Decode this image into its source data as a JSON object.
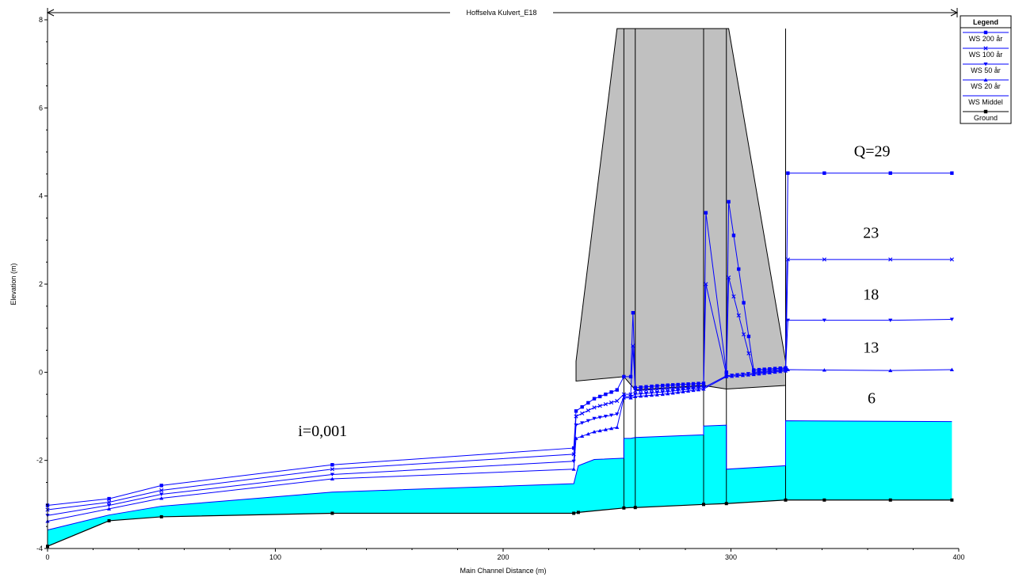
{
  "chart_data": {
    "type": "line",
    "title": "",
    "reach_label": "Hoffselva Kulvert_E18",
    "xlabel": "Main Channel Distance (m)",
    "ylabel": "Elevation (m)",
    "xlim": [
      0,
      400
    ],
    "ylim": [
      -4,
      8
    ],
    "x_ticks": [
      0,
      100,
      200,
      300,
      400
    ],
    "y_ticks": [
      -4,
      -2,
      0,
      2,
      4,
      6,
      8
    ],
    "legend": {
      "title": "Legend",
      "position": "top-right",
      "entries": [
        "WS  200 år",
        "WS  100 år",
        "WS  50 år",
        "WS  20 år",
        "WS  Middel",
        "Ground"
      ]
    },
    "colors": {
      "ws": "#0000ff",
      "water": "#00ffff",
      "ground": "#000000",
      "culvert_fill": "#c0c0c0"
    },
    "annotations": [
      {
        "text": "Q=29",
        "x": 354,
        "y": 4.9
      },
      {
        "text": "23",
        "x": 358,
        "y": 3.05
      },
      {
        "text": "18",
        "x": 358,
        "y": 1.65
      },
      {
        "text": "13",
        "x": 358,
        "y": 0.45
      },
      {
        "text": "6",
        "x": 360,
        "y": -0.7
      },
      {
        "text": "i=0,001",
        "x": 110,
        "y": -1.45
      }
    ],
    "ground": {
      "x": [
        0,
        27,
        50,
        125,
        231,
        233,
        253,
        256,
        258,
        288,
        298,
        324,
        341,
        370,
        397
      ],
      "y": [
        -3.95,
        -3.37,
        -3.28,
        -3.2,
        -3.2,
        -3.18,
        -3.08,
        -3.07,
        -3.07,
        -3.0,
        -2.98,
        -2.9,
        -2.9,
        -2.9,
        -2.9
      ]
    },
    "culvert": {
      "polygon": [
        [
          232,
          0.25
        ],
        [
          250,
          7.8
        ],
        [
          299,
          7.8
        ],
        [
          324,
          0.25
        ],
        [
          324,
          -0.3
        ],
        [
          298,
          -0.38
        ],
        [
          288,
          -0.3
        ],
        [
          258,
          -0.4
        ],
        [
          253,
          -0.1
        ],
        [
          232,
          -0.2
        ]
      ],
      "verticals": [
        253,
        258,
        288,
        298,
        324
      ]
    },
    "series": [
      {
        "name": "WS  200 år",
        "marker": "square",
        "x": [
          0,
          27,
          50,
          125,
          231,
          232,
          240,
          250,
          253,
          256,
          257,
          258,
          270,
          288,
          289,
          298,
          299,
          310,
          324,
          325,
          341,
          370,
          397
        ],
        "y": [
          -3.02,
          -2.87,
          -2.57,
          -2.1,
          -1.72,
          -0.88,
          -0.6,
          -0.4,
          -0.1,
          -0.1,
          1.35,
          -0.35,
          -0.3,
          -0.25,
          3.62,
          0.0,
          3.87,
          0.05,
          0.1,
          4.52,
          4.52,
          4.52,
          4.52
        ]
      },
      {
        "name": "WS  100 år",
        "marker": "x",
        "x": [
          0,
          27,
          50,
          125,
          231,
          232,
          240,
          250,
          253,
          256,
          257,
          258,
          270,
          288,
          289,
          298,
          299,
          310,
          324,
          325,
          341,
          370,
          397
        ],
        "y": [
          -3.12,
          -2.95,
          -2.68,
          -2.2,
          -1.86,
          -1.0,
          -0.8,
          -0.65,
          -0.5,
          -0.5,
          0.6,
          -0.42,
          -0.38,
          -0.32,
          2.0,
          -0.05,
          2.15,
          0.0,
          0.08,
          2.56,
          2.56,
          2.56,
          2.56
        ]
      },
      {
        "name": "WS  50 år",
        "marker": "triangle-down",
        "x": [
          0,
          27,
          50,
          125,
          231,
          232,
          240,
          250,
          253,
          256,
          258,
          270,
          288,
          298,
          310,
          324,
          325,
          341,
          370,
          397
        ],
        "y": [
          -3.25,
          -3.02,
          -2.77,
          -2.32,
          -2.02,
          -1.2,
          -1.05,
          -0.95,
          -0.55,
          -0.55,
          -0.5,
          -0.45,
          -0.35,
          -0.08,
          -0.02,
          0.05,
          1.18,
          1.18,
          1.18,
          1.2
        ]
      },
      {
        "name": "WS  20 år",
        "marker": "triangle-up",
        "x": [
          0,
          27,
          50,
          125,
          231,
          232,
          240,
          250,
          253,
          256,
          258,
          270,
          288,
          298,
          310,
          324,
          325,
          341,
          370,
          397
        ],
        "y": [
          -3.38,
          -3.1,
          -2.86,
          -2.42,
          -2.2,
          -1.5,
          -1.35,
          -1.25,
          -0.58,
          -0.58,
          -0.55,
          -0.5,
          -0.38,
          -0.1,
          -0.05,
          0.03,
          0.06,
          0.05,
          0.04,
          0.06
        ]
      },
      {
        "name": "WS  Middel",
        "marker": "none",
        "x": [
          0,
          27,
          50,
          125,
          231,
          233,
          240,
          253,
          253,
          256,
          258,
          288,
          288,
          298,
          298,
          324,
          324,
          397
        ],
        "y": [
          -3.58,
          -3.24,
          -3.04,
          -2.72,
          -2.53,
          -2.12,
          -1.98,
          -1.95,
          -1.5,
          -1.5,
          -1.48,
          -1.42,
          -1.22,
          -1.2,
          -2.2,
          -2.12,
          -1.1,
          -1.12
        ]
      }
    ]
  }
}
